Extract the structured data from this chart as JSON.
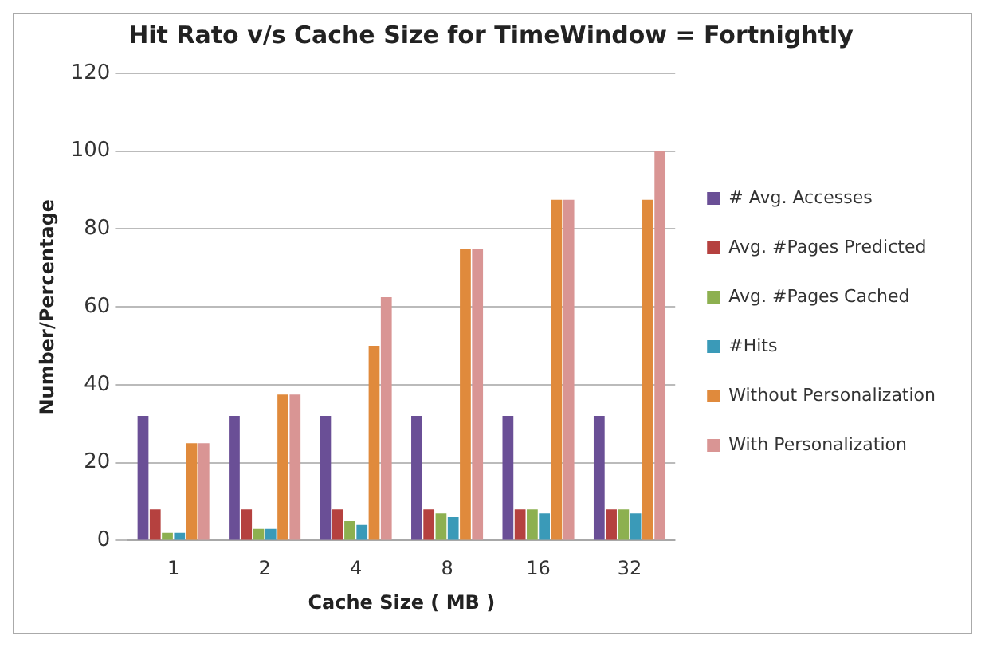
{
  "chart_data": {
    "type": "bar",
    "title": "Hit Rato v/s Cache Size for TimeWindow = Fortnightly",
    "xlabel": "Cache Size ( MB )",
    "ylabel": "Number/Percentage",
    "categories": [
      "1",
      "2",
      "4",
      "8",
      "16",
      "32"
    ],
    "series": [
      {
        "name": "# Avg. Accesses",
        "color": "#6a4f96",
        "values": [
          32,
          32,
          32,
          32,
          32,
          32
        ]
      },
      {
        "name": "Avg. #Pages Predicted",
        "color": "#b5413f",
        "values": [
          8,
          8,
          8,
          8,
          8,
          8
        ]
      },
      {
        "name": "Avg. #Pages Cached",
        "color": "#8db050",
        "values": [
          2,
          3,
          5,
          7,
          8,
          8
        ]
      },
      {
        "name": "#Hits",
        "color": "#3a9ab8",
        "values": [
          2,
          3,
          4,
          6,
          7,
          7
        ]
      },
      {
        "name": "Without Personalization",
        "color": "#e08a3c",
        "values": [
          25,
          37.5,
          50,
          75,
          87.5,
          87.5
        ]
      },
      {
        "name": "With Personalization",
        "color": "#d99594",
        "values": [
          25,
          37.5,
          62.5,
          75,
          87.5,
          100
        ]
      }
    ],
    "ylim": [
      0,
      120
    ],
    "yticks": [
      0,
      20,
      40,
      60,
      80,
      100,
      120
    ],
    "grid": "y",
    "legend": "right"
  }
}
